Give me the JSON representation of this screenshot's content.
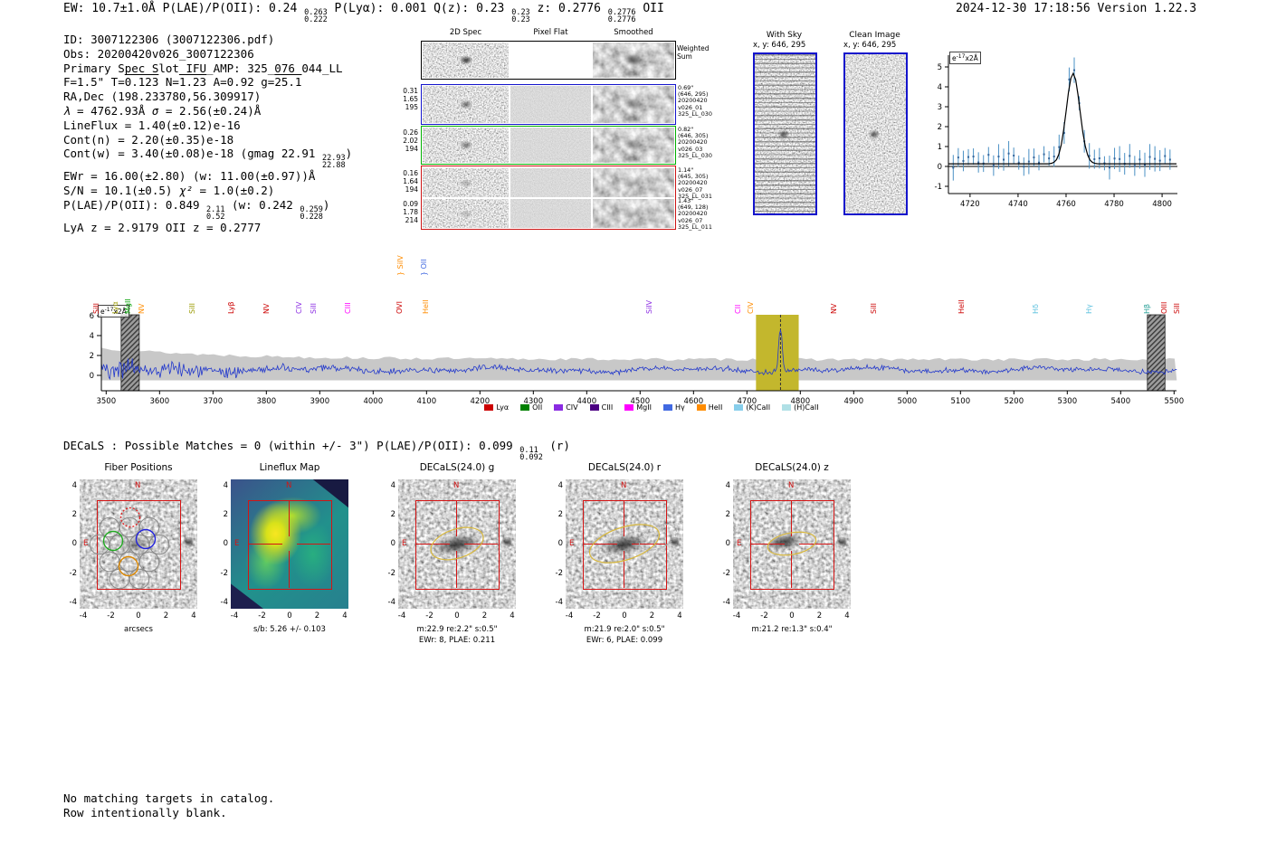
{
  "header": {
    "left": [
      {
        "t": "EW: 10.7±1.0Å  P(LAE)/P(OII): 0.24 "
      },
      {
        "sup": "0.263",
        "sub": "0.222"
      },
      {
        "t": "  P(Lyα): 0.001  Q(z): 0.23 "
      },
      {
        "sup": "0.23",
        "sub": "0.23"
      },
      {
        "t": "  z: 0.2776 "
      },
      {
        "sup": "0.2776",
        "sub": "0.2776"
      },
      {
        "t": " OII"
      }
    ],
    "right": "2024-12-30 17:18:56  Version 1.22.3"
  },
  "info": {
    "lines": [
      [
        {
          "t": "ID: 3007122306 (3007122306.pdf)"
        }
      ],
      [
        {
          "t": "Obs: 20200420v026_3007122306"
        }
      ],
      [
        {
          "t": "Primary Spec_Slot_IFU_AMP: 325_076_044_LL"
        }
      ],
      [
        {
          "t": "F=1.5\"  T="
        },
        {
          "ov": "0.123"
        },
        {
          "t": "  N="
        },
        {
          "ov": "1.23"
        },
        {
          "t": "  A=0.92  g="
        },
        {
          "ov": "25.1"
        }
      ],
      [
        {
          "t": "RA,Dec (198.233780,56.309917)"
        }
      ],
      [
        {
          "i": "λ"
        },
        {
          "t": " = 4762.93Å  "
        },
        {
          "i": "σ"
        },
        {
          "t": " = 2.56(±0.24)Å"
        }
      ],
      [
        {
          "t": "LineFlux = 1.40(±0.12)e-16"
        }
      ],
      [
        {
          "t": "Cont(n) = 2.20(±0.35)e-18"
        }
      ],
      [
        {
          "t": "Cont(w) = 3.40(±0.08)e-18 (gmag 22.91 "
        },
        {
          "sup": "22.93",
          "sub": "22.88"
        },
        {
          "t": ")"
        }
      ],
      [
        {
          "t": "EWr = 16.00(±2.80) (w: 11.00(±0.97))Å"
        }
      ],
      [
        {
          "t": "S/N = 10.1(±0.5)  "
        },
        {
          "i": "χ²"
        },
        {
          "t": " = 1.0(±0.2)"
        }
      ],
      [
        {
          "t": "P(LAE)/P(OII): 0.849 "
        },
        {
          "sup": "2.11",
          "sub": "0.52"
        },
        {
          "t": " (w: 0.242 "
        },
        {
          "sup": "0.259",
          "sub": "0.228"
        },
        {
          "t": ")"
        }
      ],
      [
        {
          "t": "LyA z = 2.9179  OII z = 0.2777"
        }
      ]
    ]
  },
  "spec2d": {
    "headers": {
      "spec": "2D Spec",
      "flat": "Pixel Flat",
      "smooth": "Smoothed",
      "weighted1": "Weighted",
      "weighted2": "Sum"
    },
    "rows": [
      {
        "left": [
          "0.31",
          "1.65",
          "195"
        ],
        "right": [
          "0.69\"",
          "(646, 295)",
          "20200420",
          "v026_01",
          "325_LL_030"
        ],
        "frame": "#1414cc"
      },
      {
        "left": [
          "0.26",
          "2.02",
          "194"
        ],
        "right": [
          "0.82\"",
          "(646, 305)",
          "20200420",
          "v026_03",
          "325_LL_030"
        ],
        "frame": "#00b000"
      },
      {
        "left": [
          "0.16",
          "1.64",
          "194"
        ],
        "right": [
          "1.14\"",
          "(645, 305)",
          "20200420",
          "v026_07",
          "325_LL_031"
        ],
        "frame": "#cc1414"
      },
      {
        "left": [
          "0.09",
          "1.78",
          "214"
        ],
        "right": [
          "1.43\"",
          "(649, 128)",
          "20200420",
          "v026_07",
          "325_LL_011"
        ],
        "frame": "#cc1414"
      }
    ]
  },
  "sky": {
    "with_sky": {
      "title": "With Sky",
      "xy": "x, y: 646, 295"
    },
    "clean": {
      "title": "Clean Image",
      "xy": "x, y: 646, 295"
    }
  },
  "chart_data": [
    {
      "id": "line_fit_zoom",
      "type": "scatter",
      "unit": {
        "base": "e",
        "sup": "-17",
        "rest": "x2Å"
      },
      "xlim": [
        4711,
        4806
      ],
      "ylim": [
        -1.35,
        5.6
      ],
      "x_ticks": [
        4720,
        4740,
        4760,
        4780,
        4800
      ],
      "y_ticks": [
        -1,
        0,
        1,
        2,
        3,
        4,
        5
      ],
      "fit_curve": {
        "shape": "gaussian",
        "center": 4762.93,
        "sigma": 2.56,
        "amplitude": 4.55,
        "baseline": 0.13
      },
      "data_style": "blue points with vertical error bars ~±0.4, baseline ~0.3, peaking ~4.9 at line center"
    },
    {
      "id": "full_spectrum",
      "type": "line",
      "unit": {
        "base": "e",
        "sup": "-17",
        "rest": "x2Å"
      },
      "xlim": [
        3491,
        5505
      ],
      "ylim": [
        -1.55,
        6.1
      ],
      "x_ticks": [
        3500,
        3600,
        3700,
        3800,
        3900,
        4000,
        4100,
        4200,
        4300,
        4400,
        4500,
        4600,
        4700,
        4800,
        4900,
        5000,
        5100,
        5200,
        5300,
        5400,
        5500
      ],
      "y_ticks": [
        0,
        2,
        4,
        6
      ],
      "detected_line": {
        "center": 4762.93,
        "peak": 5.0
      },
      "highlight_band": {
        "range": [
          4717,
          4797
        ],
        "color": "#c3b72d"
      },
      "hatch_bands": [
        [
          3528,
          3562
        ],
        [
          5450,
          5483
        ]
      ],
      "continuum_level": 0.55,
      "noise_blue_end_max": 4.0,
      "line_labels": [
        {
          "text": "SiII",
          "wave": 3480,
          "color": "#cc0000"
        },
        {
          "text": "Lyα",
          "wave": 3516,
          "color": "#9a9a00"
        },
        {
          "text": "MgII",
          "wave": 3540,
          "color": "#00a000"
        },
        {
          "text": "NV",
          "wave": 3566,
          "color": "#ff8c00"
        },
        {
          "text": "SiII",
          "wave": 3660,
          "color": "#9a9a00"
        },
        {
          "text": "Lyβ",
          "wave": 3733,
          "color": "#cc0000"
        },
        {
          "text": "NV",
          "wave": 3800,
          "color": "#cc0000"
        },
        {
          "text": "CIV",
          "wave": 3860,
          "color": "#8a2be2"
        },
        {
          "text": "SiII",
          "wave": 3888,
          "color": "#8a2be2"
        },
        {
          "text": "CIII",
          "wave": 3952,
          "color": "#ff00ff"
        },
        {
          "text": "OVI",
          "wave": 4049,
          "color": "#cc0000"
        },
        {
          "text": "HeII",
          "wave": 4097,
          "color": "#ff8c00"
        },
        {
          "text": "} SiIV",
          "wave": 4050,
          "color": "#ff8c00",
          "raised": true
        },
        {
          "text": "} OII",
          "wave": 4094,
          "color": "#4169e1",
          "raised": true
        },
        {
          "text": "SiIV",
          "wave": 4517,
          "color": "#8a2be2"
        },
        {
          "text": "CII",
          "wave": 4682,
          "color": "#ff00ff"
        },
        {
          "text": "CIV",
          "wave": 4707,
          "color": "#ff8c00"
        },
        {
          "text": "NV",
          "wave": 4862,
          "color": "#cc0000"
        },
        {
          "text": "SiII",
          "wave": 4937,
          "color": "#cc0000"
        },
        {
          "text": "HeII",
          "wave": 5101,
          "color": "#cc0000"
        },
        {
          "text": "Hδ",
          "wave": 5240,
          "color": "#5bc0de"
        },
        {
          "text": "Hγ",
          "wave": 5340,
          "color": "#5bc0de"
        },
        {
          "text": "Hβ",
          "wave": 5448,
          "color": "#2aa198"
        },
        {
          "text": "OIII",
          "wave": 5480,
          "color": "#cc0000"
        },
        {
          "text": "SiII",
          "wave": 5505,
          "color": "#cc0000"
        }
      ],
      "legend": [
        {
          "label": "Lyα",
          "color": "#cc0000"
        },
        {
          "label": "OII",
          "color": "#008000"
        },
        {
          "label": "CIV",
          "color": "#8a2be2"
        },
        {
          "label": "CIII",
          "color": "#4b0082"
        },
        {
          "label": "MgII",
          "color": "#ff00ff"
        },
        {
          "label": "Hγ",
          "color": "#4169e1"
        },
        {
          "label": "HeII",
          "color": "#ff8c00"
        },
        {
          "label": "(K)CaII",
          "color": "#87ceeb"
        },
        {
          "label": "(H)CaII",
          "color": "#b0e0e6"
        }
      ]
    }
  ],
  "decals": {
    "line": [
      {
        "t": "DECaLS : Possible Matches = 0 (within +/- 3\")  P(LAE)/P(OII): 0.099 "
      },
      {
        "sup": "0.11",
        "sub": "0.092"
      },
      {
        "t": " (r)"
      }
    ]
  },
  "cutouts": {
    "x_ticks": [
      -4,
      -2,
      0,
      2,
      4
    ],
    "y_ticks": [
      4,
      2,
      0,
      -2,
      -4
    ],
    "compass": {
      "n": "N",
      "e": "E"
    },
    "panels": [
      {
        "title": "Fiber Positions",
        "kind": "fibers",
        "xlabel": "arcsecs",
        "captions": []
      },
      {
        "title": "Lineflux Map",
        "kind": "lineflux",
        "captions": [
          "s/b: 5.26 +/- 0.103"
        ]
      },
      {
        "title": "DECaLS(24.0) g",
        "kind": "decals",
        "captions": [
          "m:22.9 re:2.2\" s:0.5\"",
          "EWr: 8, PLAE: 0.211"
        ]
      },
      {
        "title": "DECaLS(24.0) r",
        "kind": "decals",
        "captions": [
          "m:21.9 re:2.0\" s:0.5\"",
          "EWr: 6, PLAE: 0.099"
        ]
      },
      {
        "title": "DECaLS(24.0) z",
        "kind": "decals",
        "captions": [
          "m:21.2 re:1.3\" s:0.4\""
        ]
      }
    ]
  },
  "footer": {
    "lines": [
      "No matching targets in catalog.",
      "Row intentionally blank."
    ]
  }
}
